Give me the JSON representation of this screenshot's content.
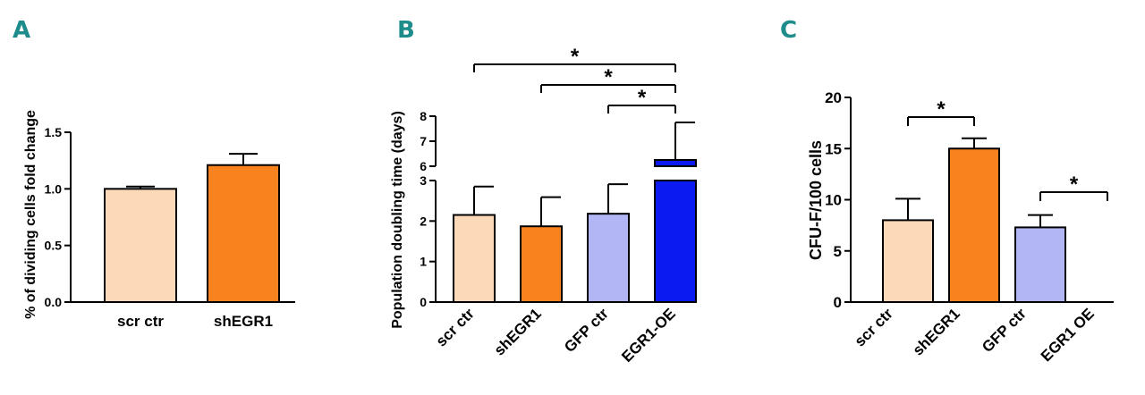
{
  "chart_data": [
    {
      "panel": "A",
      "type": "bar",
      "ylabel": "% of dividing cells fold change",
      "ylim": [
        0,
        1.5
      ],
      "yticks": [
        "0.0",
        "0.5",
        "1.0",
        "1.5"
      ],
      "categories": [
        "scr ctr",
        "shEGR1"
      ],
      "values": [
        1.0,
        1.21
      ],
      "errors": [
        0.02,
        0.1
      ],
      "colors": [
        "#fcd9b8",
        "#f7821e"
      ]
    },
    {
      "panel": "B",
      "type": "bar",
      "ylabel": "Population doubling time (days)",
      "broken_axis": true,
      "lower_ylim": [
        0,
        3
      ],
      "upper_ylim": [
        6,
        8
      ],
      "lower_yticks": [
        "0",
        "1",
        "2",
        "3"
      ],
      "upper_yticks": [
        "6",
        "7",
        "8"
      ],
      "categories": [
        "scr ctr",
        "shEGR1",
        "GFP ctr",
        "EGR1-OE"
      ],
      "values": [
        2.15,
        1.87,
        2.18,
        6.25
      ],
      "errors": [
        0.7,
        0.72,
        0.73,
        1.5
      ],
      "colors": [
        "#fcd9b8",
        "#f7821e",
        "#b3b6f5",
        "#0a1af0"
      ],
      "significance": [
        {
          "from": 0,
          "to": 3,
          "label": "*"
        },
        {
          "from": 1,
          "to": 3,
          "label": "*"
        },
        {
          "from": 2,
          "to": 3,
          "label": "*"
        }
      ]
    },
    {
      "panel": "C",
      "type": "bar",
      "ylabel": "CFU-F/100 cells",
      "ylim": [
        0,
        20
      ],
      "yticks": [
        "0",
        "5",
        "10",
        "15",
        "20"
      ],
      "categories": [
        "scr ctr",
        "shEGR1",
        "GFP ctr",
        "EGR1 OE"
      ],
      "values": [
        8.0,
        15.0,
        7.3,
        0
      ],
      "errors": [
        2.1,
        1.0,
        1.2,
        0
      ],
      "colors": [
        "#fcd9b8",
        "#f7821e",
        "#b3b6f5",
        "#ffffff"
      ],
      "significance": [
        {
          "from": 0,
          "to": 1,
          "label": "*"
        },
        {
          "from": 2,
          "to": 3,
          "label": "*"
        }
      ]
    }
  ]
}
